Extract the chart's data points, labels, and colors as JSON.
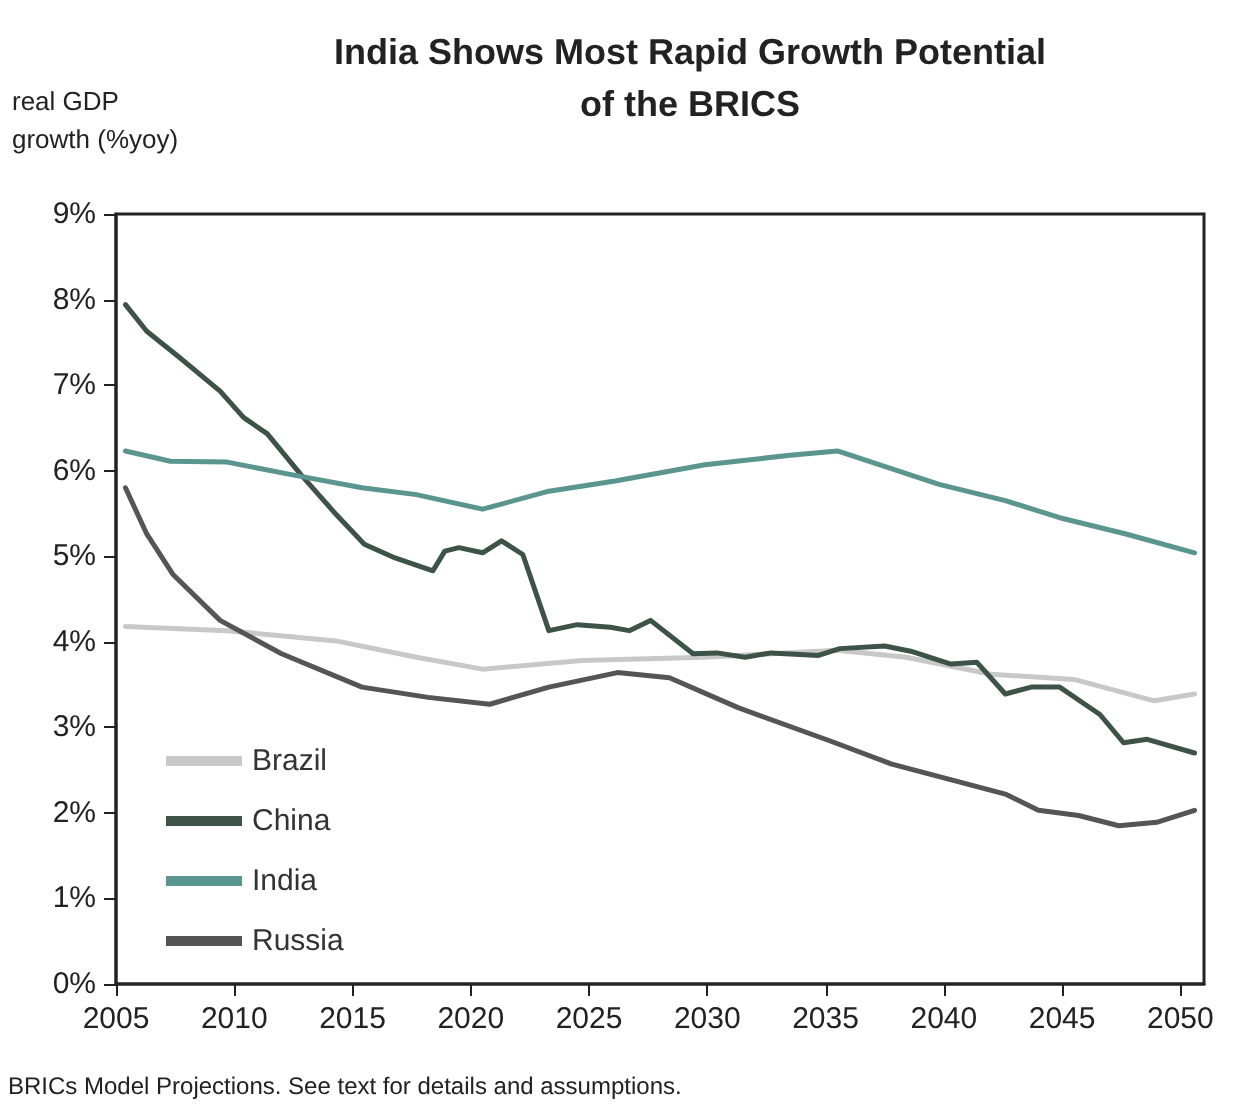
{
  "chart_data": {
    "type": "line",
    "title": "India Shows Most Rapid Growth Potential\nof the BRICS",
    "ylabel": "real GDP\ngrowth (%yoy)",
    "annotations": [
      "BRICs Model Projections. See text for details and assumptions."
    ],
    "xlim": [
      2005,
      2051
    ],
    "xticks": [
      2005,
      2010,
      2015,
      2020,
      2025,
      2030,
      2035,
      2040,
      2045,
      2050
    ],
    "ylim": [
      0,
      9
    ],
    "yticks": [
      {
        "value": 0,
        "label": "0%"
      },
      {
        "value": 1,
        "label": "1%"
      },
      {
        "value": 2,
        "label": "2%"
      },
      {
        "value": 3,
        "label": "3%"
      },
      {
        "value": 4,
        "label": "4%"
      },
      {
        "value": 5,
        "label": "5%"
      },
      {
        "value": 6,
        "label": "6%"
      },
      {
        "value": 7,
        "label": "7%"
      },
      {
        "value": 8,
        "label": "8%"
      },
      {
        "value": 9,
        "label": "9%"
      }
    ],
    "grid": false,
    "legend": "bottom left",
    "marker": "none",
    "line_style": "solid",
    "series": [
      {
        "name": "Brazil",
        "color": "#c8c8c8",
        "x": [
          2005.4,
          2009.7,
          2014.3,
          2017.7,
          2020.5,
          2024.7,
          2029.9,
          2035.5,
          2038.4,
          2042.0,
          2045.5,
          2048.9,
          2050.6
        ],
        "values": [
          4.18,
          4.13,
          4.01,
          3.82,
          3.68,
          3.78,
          3.82,
          3.9,
          3.82,
          3.62,
          3.56,
          3.31,
          3.39
        ]
      },
      {
        "name": "China",
        "color": "#3d5249",
        "x": [
          2005.4,
          2006.3,
          2007.7,
          2009.4,
          2010.4,
          2011.4,
          2012.8,
          2014.3,
          2015.5,
          2016.8,
          2018.4,
          2018.9,
          2019.5,
          2020.5,
          2021.3,
          2022.2,
          2023.3,
          2024.5,
          2025.9,
          2026.7,
          2027.6,
          2029.4,
          2030.4,
          2031.6,
          2032.7,
          2034.7,
          2035.6,
          2037.5,
          2038.6,
          2040.3,
          2041.4,
          2042.6,
          2043.7,
          2044.9,
          2046.6,
          2047.6,
          2048.6,
          2050.6
        ],
        "values": [
          7.94,
          7.63,
          7.32,
          6.93,
          6.62,
          6.43,
          5.96,
          5.49,
          5.14,
          4.98,
          4.83,
          5.06,
          5.1,
          5.04,
          5.18,
          5.02,
          4.13,
          4.2,
          4.17,
          4.13,
          4.25,
          3.86,
          3.87,
          3.82,
          3.87,
          3.84,
          3.92,
          3.95,
          3.89,
          3.74,
          3.76,
          3.39,
          3.47,
          3.47,
          3.15,
          2.82,
          2.86,
          2.7
        ]
      },
      {
        "name": "India",
        "color": "#5a9590",
        "x": [
          2005.4,
          2007.3,
          2009.7,
          2012.3,
          2015.4,
          2017.7,
          2020.5,
          2023.3,
          2026.1,
          2029.9,
          2033.5,
          2035.5,
          2039.8,
          2042.6,
          2044.9,
          2047.7,
          2050.6
        ],
        "values": [
          6.23,
          6.11,
          6.1,
          5.96,
          5.8,
          5.72,
          5.55,
          5.76,
          5.88,
          6.07,
          6.18,
          6.23,
          5.84,
          5.65,
          5.45,
          5.26,
          5.04
        ]
      },
      {
        "name": "Russia",
        "color": "#555555",
        "x": [
          2005.4,
          2006.3,
          2007.4,
          2009.4,
          2012.0,
          2015.4,
          2018.2,
          2020.8,
          2023.3,
          2026.2,
          2028.4,
          2031.3,
          2035.2,
          2037.8,
          2042.6,
          2044.0,
          2045.7,
          2047.4,
          2049.0,
          2050.6
        ],
        "values": [
          5.8,
          5.26,
          4.79,
          4.25,
          3.86,
          3.47,
          3.35,
          3.27,
          3.47,
          3.64,
          3.58,
          3.23,
          2.84,
          2.57,
          2.22,
          2.03,
          1.97,
          1.85,
          1.89,
          2.03
        ]
      }
    ]
  }
}
